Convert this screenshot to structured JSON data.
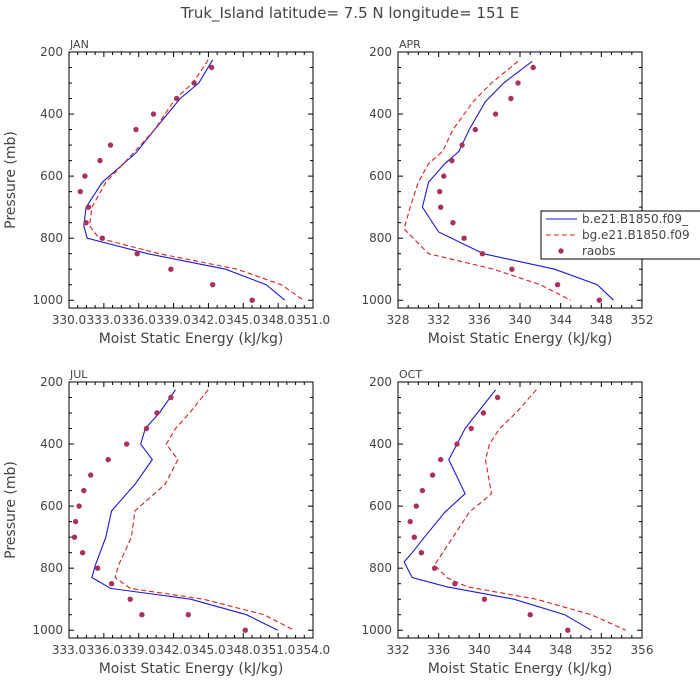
{
  "figure": {
    "title": "Truk_Island   latitude= 7.5 N longitude= 151 E"
  },
  "legend": {
    "entries": [
      {
        "label": "b.e21.B1850.f09_",
        "style": "solid",
        "color": "#1a1ad6"
      },
      {
        "label": "bg.e21.B1850.f09",
        "style": "dashed",
        "color": "#e02020"
      },
      {
        "label": "raobs",
        "style": "marker",
        "color": "#a8325a"
      }
    ]
  },
  "chart_data": [
    {
      "type": "line",
      "panel_label": "JAN",
      "xlabel": "Moist Static Energy (kJ/kg)",
      "ylabel": "Pressure (mb)",
      "xlim": [
        330.03,
        351.03
      ],
      "ylim": [
        1025,
        200
      ],
      "xticks": [
        "330.0",
        "333.0",
        "336.0",
        "339.0",
        "342.0",
        "345.0",
        "348.0",
        "351.0"
      ],
      "yticks": [
        "200",
        "400",
        "600",
        "800",
        "1000"
      ],
      "series": [
        {
          "name": "b.e21.B1850.f09_",
          "style": "solid",
          "color": "#1a1ad6",
          "x": [
            342.4,
            341.2,
            339.6,
            337.4,
            335.8,
            332.9,
            331.5,
            331.3,
            331.6,
            336.8,
            343.5,
            347.0,
            348.6
          ],
          "y": [
            225,
            300,
            350,
            450,
            525,
            620,
            700,
            760,
            800,
            850,
            900,
            950,
            1000
          ]
        },
        {
          "name": "bg.e21.B1850.f09",
          "style": "dashed",
          "color": "#e02020",
          "x": [
            342.0,
            340.7,
            339.2,
            337.4,
            335.6,
            333.2,
            332.0,
            331.8,
            332.6,
            337.8,
            344.5,
            348.3,
            350.2
          ],
          "y": [
            225,
            300,
            350,
            450,
            525,
            620,
            700,
            760,
            800,
            850,
            900,
            950,
            1000
          ]
        },
        {
          "name": "raobs",
          "style": "marker",
          "color": "#a8325a",
          "x": [
            342.3,
            340.8,
            339.3,
            337.3,
            335.8,
            333.6,
            332.7,
            331.4,
            331.0,
            331.7,
            331.5,
            332.9,
            335.9,
            338.8,
            342.4,
            345.8
          ],
          "y": [
            250,
            300,
            350,
            400,
            450,
            500,
            550,
            600,
            650,
            700,
            750,
            800,
            850,
            900,
            950,
            1000
          ]
        }
      ]
    },
    {
      "type": "line",
      "panel_label": "APR",
      "xlabel": "Moist Static Energy (kJ/kg)",
      "ylabel": "",
      "xlim": [
        328,
        352
      ],
      "ylim": [
        1025,
        200
      ],
      "xticks": [
        "328",
        "332",
        "336",
        "340",
        "344",
        "348",
        "352"
      ],
      "yticks": [
        "200",
        "400",
        "600",
        "800",
        "1000"
      ],
      "series": [
        {
          "name": "b.e21.B1850.f09_",
          "style": "solid",
          "color": "#1a1ad6",
          "x": [
            341.2,
            338.4,
            336.6,
            335.0,
            334.0,
            332.6,
            331.0,
            330.4,
            332.0,
            336.4,
            343.4,
            347.6,
            349.2
          ],
          "y": [
            230,
            300,
            360,
            450,
            520,
            560,
            620,
            700,
            780,
            850,
            900,
            950,
            1000
          ]
        },
        {
          "name": "bg.e21.B1850.f09",
          "style": "dashed",
          "color": "#e02020",
          "x": [
            339.8,
            337.2,
            335.4,
            333.4,
            332.4,
            331.0,
            330.0,
            329.2,
            328.6,
            331.0,
            337.4,
            342.0,
            345.0
          ],
          "y": [
            230,
            300,
            360,
            450,
            520,
            560,
            620,
            700,
            770,
            850,
            900,
            950,
            1000
          ]
        },
        {
          "name": "raobs",
          "style": "marker",
          "color": "#a8325a",
          "x": [
            341.3,
            339.8,
            339.1,
            337.6,
            335.6,
            334.3,
            333.3,
            332.5,
            332.1,
            332.2,
            333.4,
            334.5,
            336.3,
            339.2,
            343.7,
            347.8
          ],
          "y": [
            250,
            300,
            350,
            400,
            450,
            500,
            550,
            600,
            650,
            700,
            750,
            800,
            850,
            900,
            950,
            1000
          ]
        }
      ]
    },
    {
      "type": "line",
      "panel_label": "JUL",
      "xlabel": "Moist Static Energy (kJ/kg)",
      "ylabel": "Pressure (mb)",
      "xlim": [
        333.03,
        354.03
      ],
      "ylim": [
        1025,
        200
      ],
      "xticks": [
        "333.0",
        "336.0",
        "339.0",
        "342.0",
        "345.0",
        "348.0",
        "351.0",
        "354.0"
      ],
      "yticks": [
        "200",
        "400",
        "600",
        "800",
        "1000"
      ],
      "series": [
        {
          "name": "b.e21.B1850.f09_",
          "style": "solid",
          "color": "#1a1ad6",
          "x": [
            342.2,
            340.8,
            339.6,
            339.2,
            340.2,
            338.7,
            336.7,
            336.2,
            335.3,
            335.0,
            336.6,
            343.5,
            348.3,
            351.0
          ],
          "y": [
            225,
            300,
            350,
            400,
            450,
            530,
            615,
            700,
            790,
            830,
            865,
            900,
            950,
            1000
          ]
        },
        {
          "name": "bg.e21.B1850.f09",
          "style": "dashed",
          "color": "#e02020",
          "x": [
            345.0,
            343.4,
            342.2,
            341.4,
            342.4,
            341.3,
            338.7,
            338.4,
            337.3,
            337.0,
            338.3,
            344.6,
            349.8,
            352.4
          ],
          "y": [
            225,
            300,
            350,
            400,
            450,
            530,
            615,
            700,
            790,
            830,
            865,
            900,
            950,
            1000
          ]
        },
        {
          "name": "raobs",
          "style": "marker",
          "color": "#a8325a",
          "x": [
            341.8,
            340.6,
            339.7,
            338.0,
            336.4,
            334.9,
            334.3,
            333.9,
            333.6,
            333.5,
            334.2,
            335.5,
            336.7,
            338.3,
            339.3,
            343.3,
            348.2
          ],
          "y": [
            250,
            300,
            350,
            400,
            450,
            500,
            550,
            600,
            650,
            700,
            750,
            800,
            850,
            900,
            950,
            950,
            1000
          ]
        }
      ]
    },
    {
      "type": "line",
      "panel_label": "OCT",
      "xlabel": "Moist Static Energy (kJ/kg)",
      "ylabel": "",
      "xlim": [
        332,
        356
      ],
      "ylim": [
        1025,
        200
      ],
      "xticks": [
        "332",
        "336",
        "340",
        "344",
        "348",
        "352",
        "356"
      ],
      "yticks": [
        "200",
        "400",
        "600",
        "800",
        "1000"
      ],
      "series": [
        {
          "name": "b.e21.B1850.f09_",
          "style": "solid",
          "color": "#1a1ad6",
          "x": [
            341.6,
            339.8,
            338.6,
            337.8,
            337.0,
            338.6,
            336.6,
            334.6,
            333.4,
            332.6,
            333.4,
            336.8,
            343.4,
            348.4,
            351.0
          ],
          "y": [
            225,
            300,
            350,
            400,
            450,
            560,
            620,
            700,
            750,
            780,
            830,
            860,
            900,
            950,
            1000
          ]
        },
        {
          "name": "bg.e21.B1850.f09",
          "style": "dashed",
          "color": "#e02020",
          "x": [
            345.6,
            343.6,
            342.0,
            341.0,
            340.6,
            341.2,
            339.0,
            337.4,
            336.4,
            335.6,
            336.8,
            338.8,
            345.6,
            351.0,
            354.4
          ],
          "y": [
            225,
            300,
            350,
            400,
            450,
            560,
            620,
            700,
            750,
            790,
            830,
            860,
            900,
            950,
            1000
          ]
        },
        {
          "name": "raobs",
          "style": "marker",
          "color": "#a8325a",
          "x": [
            341.8,
            340.4,
            339.2,
            337.8,
            336.2,
            335.4,
            334.4,
            333.8,
            333.2,
            333.6,
            334.3,
            335.6,
            337.6,
            340.5,
            345.0,
            348.7
          ],
          "y": [
            250,
            300,
            350,
            400,
            450,
            500,
            550,
            600,
            650,
            700,
            750,
            800,
            850,
            900,
            950,
            1000
          ]
        }
      ]
    }
  ]
}
